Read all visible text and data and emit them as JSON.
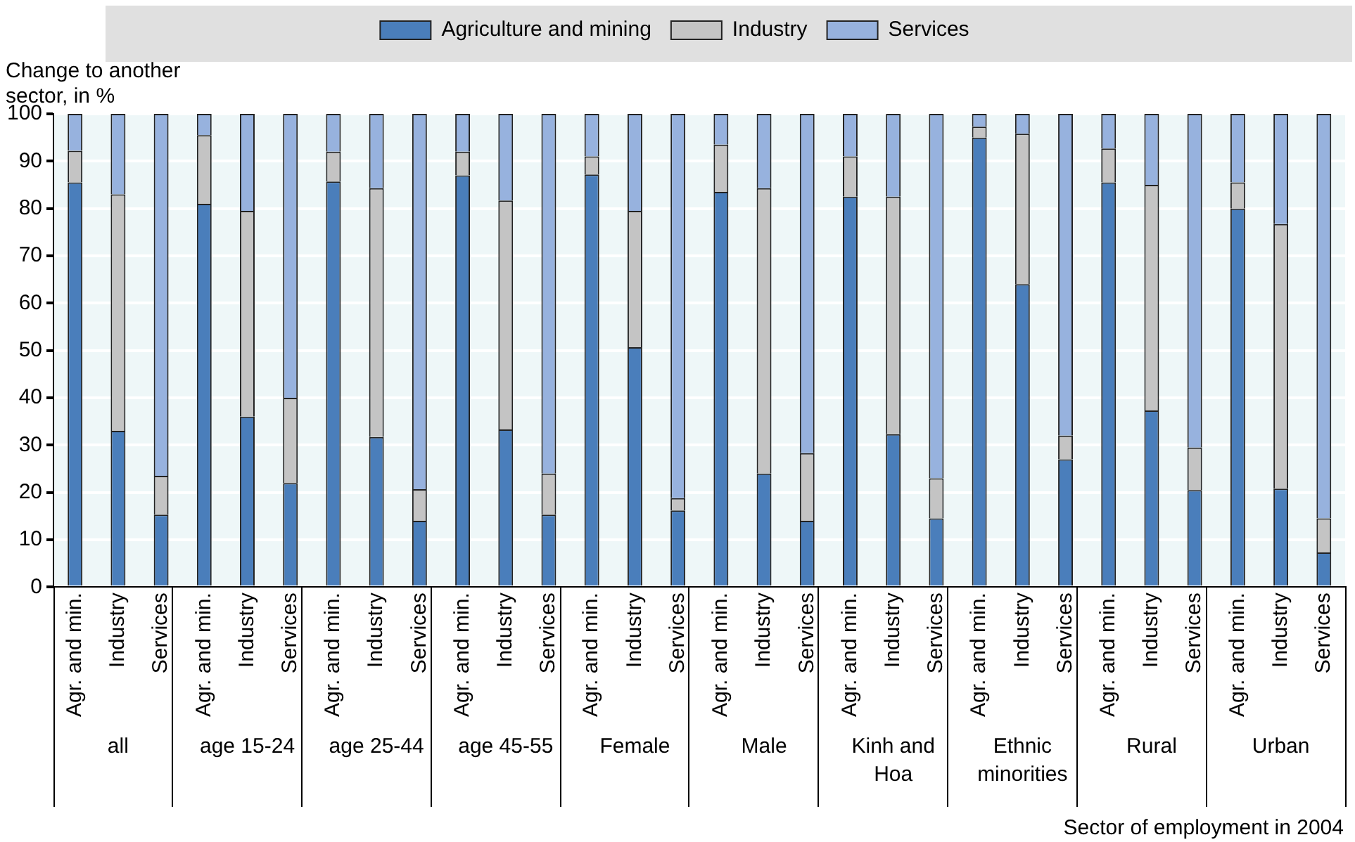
{
  "chart_data": {
    "type": "bar",
    "stacked": true,
    "ylabel": "Change to another sector, in %",
    "xlabel": "Sector of employment in 2004",
    "categories": [
      "Agr. and min.",
      "Industry",
      "Services",
      "Agr. and min.",
      "Industry",
      "Services",
      "Agr. and min.",
      "Industry",
      "Services",
      "Agr. and min.",
      "Industry",
      "Services",
      "Agr. and min.",
      "Industry",
      "Services",
      "Agr. and min.",
      "Industry",
      "Services",
      "Agr. and min.",
      "Industry",
      "Services",
      "Agr. and min.",
      "Industry",
      "Services",
      "Agr. and min.",
      "Industry",
      "Services",
      "Agr. and min.",
      "Industry",
      "Services"
    ],
    "series": [
      {
        "name": "Agriculture and mining",
        "color": "#4a7ebb",
        "values": [
          85.5,
          33,
          15.3,
          81,
          36,
          22,
          85.7,
          31.7,
          14,
          87,
          33.3,
          15.3,
          87.2,
          50.7,
          16.2,
          83.5,
          24,
          14,
          82.5,
          32.3,
          14.5,
          95,
          64,
          27,
          85.5,
          37.3,
          20.5,
          80,
          20.8,
          7.3
        ]
      },
      {
        "name": "Industry",
        "color": "#c4c4c4",
        "values": [
          6.7,
          50,
          8.2,
          14.5,
          43.5,
          18,
          6.3,
          52.6,
          6.7,
          5,
          48.4,
          8.7,
          3.8,
          28.8,
          2.6,
          10,
          60.3,
          14.3,
          8.5,
          50.2,
          8.5,
          2.3,
          31.8,
          5,
          7.2,
          47.7,
          9,
          5.5,
          55.9,
          7.2
        ]
      },
      {
        "name": "Services",
        "color": "#97b2de",
        "values": [
          7.8,
          17,
          76.5,
          4.5,
          20.5,
          60,
          8,
          15.7,
          79.3,
          8,
          18.3,
          76,
          9,
          20.5,
          81.2,
          6.5,
          15.7,
          71.7,
          9,
          17.5,
          77,
          2.7,
          4.2,
          68,
          7.3,
          15,
          70.5,
          14.5,
          23.3,
          85.5
        ]
      }
    ],
    "ylim": [
      0,
      100
    ],
    "yticks": [
      0,
      10,
      20,
      30,
      40,
      50,
      60,
      70,
      80,
      90,
      100
    ],
    "grid": "y",
    "legend": "top",
    "annotations": [
      "all",
      "age 15-24",
      "age 25-44",
      "age 45-55",
      "Female",
      "Male",
      "Kinh and Hoa",
      "Ethnic minorities",
      "Rural",
      "Urban"
    ]
  }
}
